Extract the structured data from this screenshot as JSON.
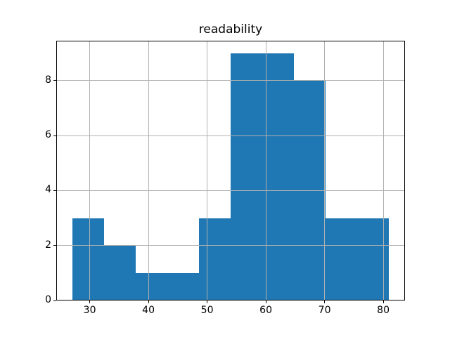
{
  "chart_data": {
    "type": "bar",
    "subtype": "histogram",
    "title": "readability",
    "xlabel": "",
    "ylabel": "",
    "bin_edges": [
      27,
      32.4,
      37.8,
      43.2,
      48.6,
      54,
      59.4,
      64.8,
      70.2,
      75.6,
      81
    ],
    "counts": [
      3,
      2,
      1,
      1,
      3,
      9,
      9,
      8,
      3,
      3
    ],
    "xticks": [
      30,
      40,
      50,
      60,
      70,
      80
    ],
    "yticks": [
      0,
      2,
      4,
      6,
      8
    ],
    "xlim": [
      24.3,
      83.7
    ],
    "ylim": [
      0,
      9.45
    ],
    "grid": true,
    "legend": null,
    "colors": {
      "bar": "#1f77b4",
      "grid": "#b0b0b0",
      "spine": "#000000",
      "background": "#ffffff"
    }
  }
}
